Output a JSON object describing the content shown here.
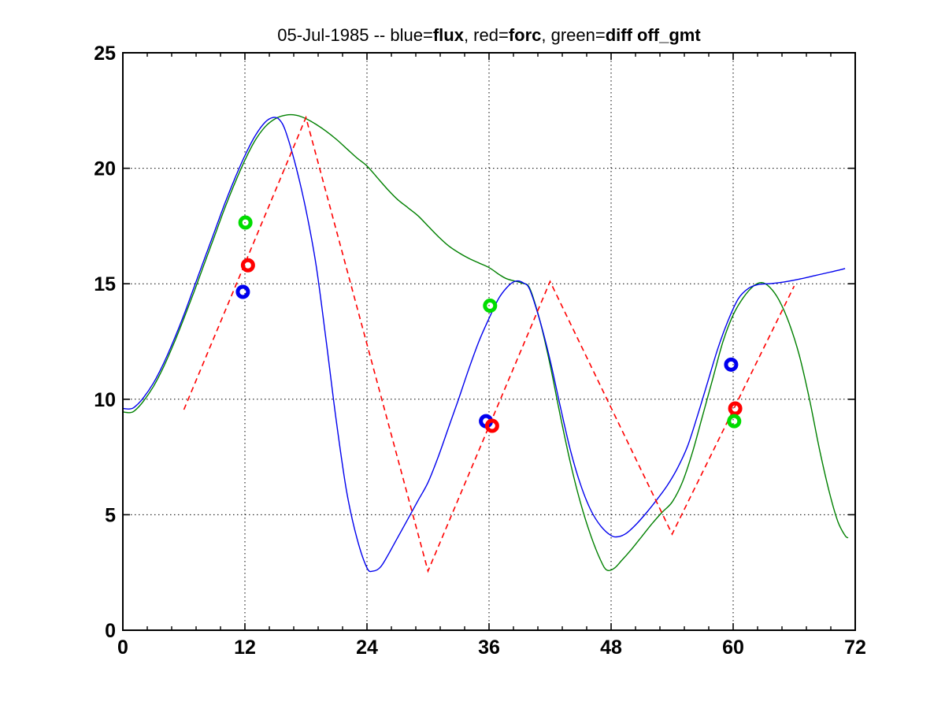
{
  "figure": {
    "background": "#ffffff",
    "title": "05-Jul-1985 -- blue=flux, red=forc, green=diff off_gmt"
  },
  "chart_data": {
    "type": "line",
    "title": "05-Jul-1985 -- blue=flux, red=forc, green=diff off_gmt",
    "title_segments": [
      {
        "text": "05-Jul-1985 -- blue=",
        "bold": false
      },
      {
        "text": "flux",
        "bold": true
      },
      {
        "text": ", red=",
        "bold": false
      },
      {
        "text": "forc",
        "bold": true
      },
      {
        "text": ", green=",
        "bold": false
      },
      {
        "text": "diff off_gmt",
        "bold": true
      }
    ],
    "xlabel": "",
    "ylabel": "",
    "xlim": [
      0,
      72
    ],
    "ylim": [
      0,
      25
    ],
    "x_major_ticks": [
      0,
      12,
      24,
      36,
      48,
      60,
      72
    ],
    "x_tick_labels": [
      "0",
      "12",
      "24",
      "36",
      "48",
      "60",
      "72"
    ],
    "x_minor_step": 2.4,
    "y_major_ticks": [
      0,
      5,
      10,
      15,
      20,
      25
    ],
    "y_tick_labels": [
      "0",
      "5",
      "10",
      "15",
      "20",
      "25"
    ],
    "grid": "dotted",
    "grid_color": "#000000",
    "legend_position": "encoded-in-title",
    "series": [
      {
        "name": "diff",
        "color": "#008000",
        "style": "solid",
        "points": [
          [
            0,
            9.45
          ],
          [
            0.7,
            9.42
          ],
          [
            1.2,
            9.52
          ],
          [
            2,
            9.9
          ],
          [
            3,
            10.55
          ],
          [
            4,
            11.4
          ],
          [
            5,
            12.4
          ],
          [
            6,
            13.5
          ],
          [
            7,
            14.65
          ],
          [
            8,
            15.85
          ],
          [
            9,
            17.05
          ],
          [
            10,
            18.25
          ],
          [
            11,
            19.35
          ],
          [
            12,
            20.35
          ],
          [
            13,
            21.2
          ],
          [
            14,
            21.8
          ],
          [
            15,
            22.15
          ],
          [
            16,
            22.3
          ],
          [
            17,
            22.3
          ],
          [
            18,
            22.15
          ],
          [
            19,
            21.9
          ],
          [
            20,
            21.6
          ],
          [
            21,
            21.25
          ],
          [
            22,
            20.85
          ],
          [
            23,
            20.45
          ],
          [
            24,
            20.1
          ],
          [
            25,
            19.6
          ],
          [
            26,
            19.1
          ],
          [
            27,
            18.65
          ],
          [
            28,
            18.3
          ],
          [
            29,
            17.95
          ],
          [
            30,
            17.5
          ],
          [
            31,
            17.05
          ],
          [
            32,
            16.65
          ],
          [
            33,
            16.35
          ],
          [
            34,
            16.1
          ],
          [
            35,
            15.9
          ],
          [
            36,
            15.7
          ],
          [
            37,
            15.4
          ],
          [
            37.7,
            15.22
          ],
          [
            38.5,
            15.12
          ],
          [
            39.3,
            15.02
          ],
          [
            40,
            14.8
          ],
          [
            41,
            13.4
          ],
          [
            42,
            11.5
          ],
          [
            43,
            9.3
          ],
          [
            44,
            7.25
          ],
          [
            45,
            5.5
          ],
          [
            46,
            4.1
          ],
          [
            47,
            3.0
          ],
          [
            47.6,
            2.6
          ],
          [
            48.3,
            2.68
          ],
          [
            49,
            3.0
          ],
          [
            50,
            3.5
          ],
          [
            51,
            4.05
          ],
          [
            52,
            4.6
          ],
          [
            53,
            5.1
          ],
          [
            54,
            5.55
          ],
          [
            55,
            6.4
          ],
          [
            56,
            7.7
          ],
          [
            57,
            9.3
          ],
          [
            58,
            10.9
          ],
          [
            59,
            12.5
          ],
          [
            60,
            13.65
          ],
          [
            61,
            14.4
          ],
          [
            62,
            14.9
          ],
          [
            62.8,
            15.05
          ],
          [
            63.6,
            14.85
          ],
          [
            64.5,
            14.3
          ],
          [
            65.5,
            13.3
          ],
          [
            66.5,
            11.9
          ],
          [
            67.5,
            10.0
          ],
          [
            68.5,
            7.8
          ],
          [
            69.5,
            5.9
          ],
          [
            70.3,
            4.7
          ],
          [
            71,
            4.1
          ],
          [
            71.3,
            4.0
          ]
        ]
      },
      {
        "name": "flux",
        "color": "#0000ee",
        "style": "solid",
        "points": [
          [
            0,
            9.6
          ],
          [
            0.7,
            9.58
          ],
          [
            1.2,
            9.68
          ],
          [
            2,
            10.05
          ],
          [
            3,
            10.7
          ],
          [
            4,
            11.55
          ],
          [
            5,
            12.55
          ],
          [
            6,
            13.65
          ],
          [
            7,
            14.85
          ],
          [
            8,
            16.05
          ],
          [
            9,
            17.25
          ],
          [
            10,
            18.45
          ],
          [
            11,
            19.55
          ],
          [
            12,
            20.55
          ],
          [
            13,
            21.4
          ],
          [
            14,
            22.0
          ],
          [
            14.8,
            22.2
          ],
          [
            15.4,
            22.1
          ],
          [
            16,
            21.6
          ],
          [
            17,
            20.1
          ],
          [
            18,
            18.2
          ],
          [
            19,
            15.8
          ],
          [
            20,
            12.5
          ],
          [
            21,
            9.0
          ],
          [
            22,
            6.0
          ],
          [
            23,
            4.0
          ],
          [
            24,
            2.7
          ],
          [
            24.6,
            2.56
          ],
          [
            25.3,
            2.72
          ],
          [
            26,
            3.2
          ],
          [
            27,
            4.0
          ],
          [
            28,
            4.8
          ],
          [
            29,
            5.6
          ],
          [
            30,
            6.4
          ],
          [
            31,
            7.5
          ],
          [
            32,
            8.75
          ],
          [
            33,
            10.0
          ],
          [
            34,
            11.3
          ],
          [
            35,
            12.5
          ],
          [
            36,
            13.5
          ],
          [
            37,
            14.4
          ],
          [
            38,
            14.95
          ],
          [
            38.7,
            15.12
          ],
          [
            39.4,
            15.03
          ],
          [
            40,
            14.75
          ],
          [
            41,
            13.4
          ],
          [
            42,
            11.7
          ],
          [
            43,
            9.7
          ],
          [
            44,
            7.8
          ],
          [
            45,
            6.3
          ],
          [
            46,
            5.2
          ],
          [
            47,
            4.5
          ],
          [
            48,
            4.1
          ],
          [
            48.7,
            4.05
          ],
          [
            49.5,
            4.2
          ],
          [
            50.5,
            4.6
          ],
          [
            51.5,
            5.1
          ],
          [
            52.5,
            5.65
          ],
          [
            53.5,
            6.25
          ],
          [
            54.5,
            7.0
          ],
          [
            55.5,
            7.95
          ],
          [
            56.5,
            9.3
          ],
          [
            57.5,
            10.75
          ],
          [
            58.5,
            12.2
          ],
          [
            59.5,
            13.4
          ],
          [
            60.5,
            14.35
          ],
          [
            61.5,
            14.8
          ],
          [
            62.5,
            14.97
          ],
          [
            63.5,
            15.0
          ],
          [
            65,
            15.08
          ],
          [
            66.5,
            15.2
          ],
          [
            68,
            15.35
          ],
          [
            69.5,
            15.5
          ],
          [
            70.5,
            15.6
          ],
          [
            71,
            15.66
          ]
        ]
      },
      {
        "name": "forc",
        "color": "#ff0000",
        "style": "dashed",
        "points": [
          [
            6,
            9.55
          ],
          [
            18,
            22.2
          ],
          [
            30,
            2.56
          ],
          [
            42,
            15.1
          ],
          [
            54,
            4.16
          ],
          [
            66,
            14.9
          ]
        ]
      }
    ],
    "markers": [
      {
        "name": "flux-obs",
        "color": "#0000ee",
        "points": [
          [
            11.8,
            14.65
          ],
          [
            35.7,
            9.05
          ],
          [
            59.8,
            11.5
          ]
        ]
      },
      {
        "name": "forc-obs",
        "color": "#ff0000",
        "points": [
          [
            12.3,
            15.8
          ],
          [
            36.3,
            8.85
          ],
          [
            60.2,
            9.6
          ]
        ]
      },
      {
        "name": "diff-obs",
        "color": "#00dd00",
        "points": [
          [
            12.05,
            17.65
          ],
          [
            36.1,
            14.05
          ],
          [
            60.1,
            9.05
          ]
        ]
      }
    ]
  }
}
